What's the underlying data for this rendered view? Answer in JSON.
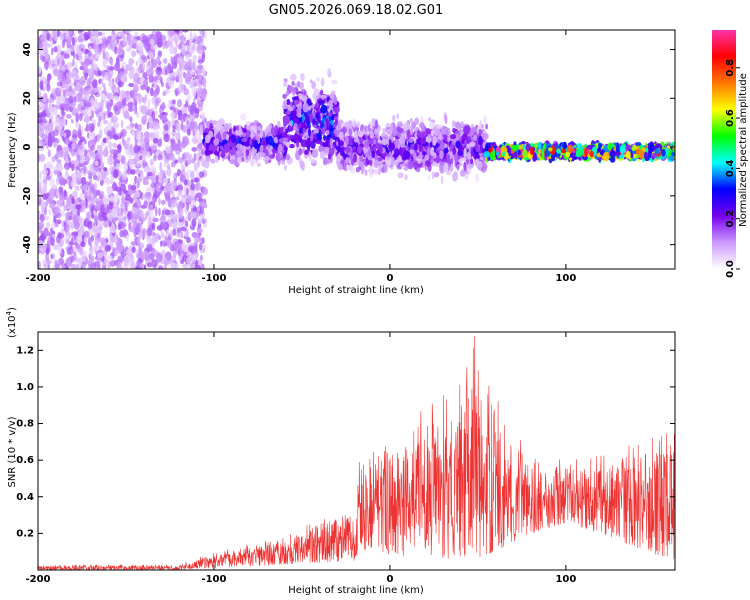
{
  "title": "GN05.2026.069.18.02.G01",
  "chart_data": [
    {
      "type": "heatmap",
      "name": "spectrogram",
      "xlabel": "Height of straight line (km)",
      "ylabel": "Frequency (Hz)",
      "xlim": [
        -200,
        162
      ],
      "ylim": [
        -50,
        48
      ],
      "xticks": [
        -200,
        -100,
        0,
        100
      ],
      "yticks": [
        -40,
        -20,
        0,
        20,
        40
      ],
      "colorbar": {
        "label": "Normalized spectral amplitude",
        "range": [
          0.0,
          0.95
        ],
        "ticks": [
          "0.0",
          "0.2",
          "0.4",
          "0.6",
          "0.8"
        ],
        "tick_values": [
          0.0,
          0.2,
          0.4,
          0.6,
          0.8
        ],
        "colors": [
          "#ffffff",
          "#cc99ff",
          "#7700ee",
          "#0000ff",
          "#00ffff",
          "#00ff00",
          "#ffff00",
          "#ff7700",
          "#ff0000",
          "#ff33aa"
        ]
      },
      "regions": [
        {
          "x_range": [
            -200,
            -105
          ],
          "freq_center": 0,
          "freq_spread": 50,
          "amplitude": 0.12,
          "description": "noise"
        },
        {
          "x_range": [
            -105,
            -60
          ],
          "freq_center": 2,
          "freq_spread": 6,
          "amplitude": 0.25
        },
        {
          "x_range": [
            -60,
            -30
          ],
          "freq_center": 10,
          "freq_spread": 12,
          "amplitude": 0.3
        },
        {
          "x_range": [
            -30,
            55
          ],
          "freq_center": 0,
          "freq_spread": 8,
          "amplitude": 0.22
        },
        {
          "x_range": [
            55,
            162
          ],
          "freq_center": -2,
          "freq_spread": 2,
          "amplitude": 0.75
        }
      ]
    },
    {
      "type": "line",
      "name": "snr",
      "xlabel": "Height of straight line (km)",
      "ylabel": "SNR (10 * v/v)",
      "y_multiplier": "(x10",
      "y_multiplier_exp": "4",
      "y_multiplier_close": ")",
      "xlim": [
        -200,
        162
      ],
      "ylim": [
        0,
        1.3
      ],
      "xticks": [
        -200,
        -100,
        0,
        100
      ],
      "yticks": [
        0.2,
        0.4,
        0.6,
        0.8,
        1.0,
        1.2
      ],
      "color": "#ee3333",
      "envelope": {
        "x": [
          -200,
          -120,
          -100,
          -80,
          -60,
          -40,
          -20,
          -18,
          0,
          20,
          30,
          40,
          45,
          50,
          60,
          80,
          100,
          120,
          140,
          162
        ],
        "max": [
          0.03,
          0.03,
          0.1,
          0.14,
          0.2,
          0.28,
          0.36,
          0.6,
          0.7,
          0.9,
          1.0,
          1.12,
          1.3,
          1.28,
          0.95,
          0.65,
          0.6,
          0.65,
          0.72,
          0.78
        ],
        "min": [
          0.0,
          0.0,
          0.01,
          0.02,
          0.03,
          0.04,
          0.05,
          0.1,
          0.08,
          0.06,
          0.06,
          0.06,
          0.06,
          0.07,
          0.1,
          0.2,
          0.25,
          0.2,
          0.12,
          0.05
        ]
      }
    }
  ]
}
